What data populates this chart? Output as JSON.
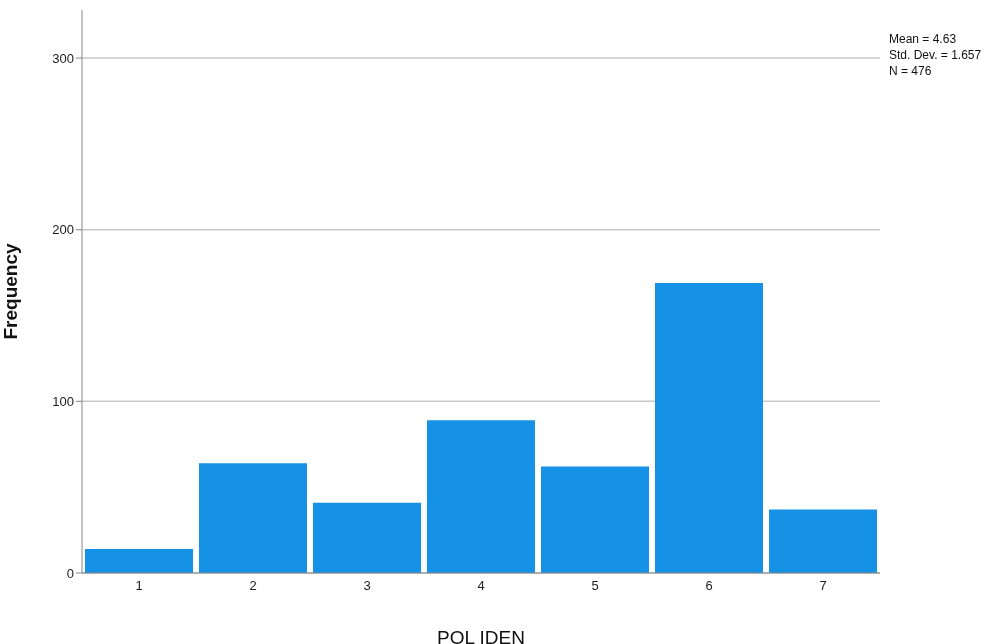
{
  "chart_data": {
    "type": "bar",
    "xlabel": "POL IDEN",
    "ylabel": "Frequency",
    "categories": [
      "1",
      "2",
      "3",
      "4",
      "5",
      "6",
      "7"
    ],
    "values": [
      14,
      64,
      41,
      89,
      62,
      169,
      37
    ],
    "color": "#1591e6",
    "ylim": [
      0,
      328
    ],
    "yticks": [
      0,
      100,
      200,
      300
    ],
    "grid": "y",
    "annotations": [
      "Mean = 4.63",
      "Std. Dev. = 1.657",
      "N = 476"
    ]
  }
}
